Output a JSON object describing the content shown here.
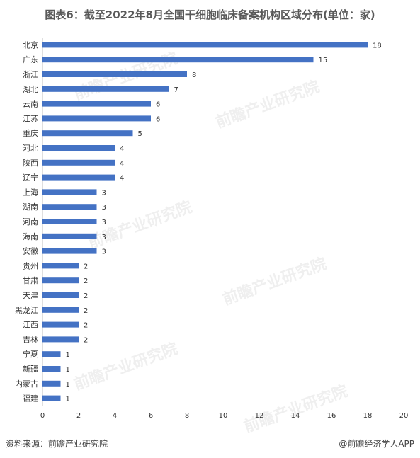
{
  "title": "图表6：截至2022年8月全国干细胞临床备案机构区域分布(单位：家)",
  "footer": {
    "source": "资料来源：前瞻产业研究院",
    "brand": "@前瞻经济学人APP"
  },
  "watermark": "前瞻产业研究院",
  "chart_data": {
    "type": "bar",
    "orientation": "horizontal",
    "categories": [
      "北京",
      "广东",
      "浙江",
      "湖北",
      "云南",
      "江苏",
      "重庆",
      "河北",
      "陕西",
      "辽宁",
      "上海",
      "湖南",
      "河南",
      "海南",
      "安徽",
      "贵州",
      "甘肃",
      "天津",
      "黑龙江",
      "江西",
      "吉林",
      "宁夏",
      "新疆",
      "内蒙古",
      "福建"
    ],
    "values": [
      18,
      15,
      8,
      7,
      6,
      6,
      5,
      4,
      4,
      4,
      3,
      3,
      3,
      3,
      3,
      2,
      2,
      2,
      2,
      2,
      2,
      1,
      1,
      1,
      1
    ],
    "xlim": [
      0,
      20
    ],
    "xticks": [
      0,
      2,
      4,
      6,
      8,
      10,
      12,
      14,
      16,
      18,
      20
    ],
    "bar_color": "#4472C4",
    "grid": false,
    "data_labels": true
  }
}
